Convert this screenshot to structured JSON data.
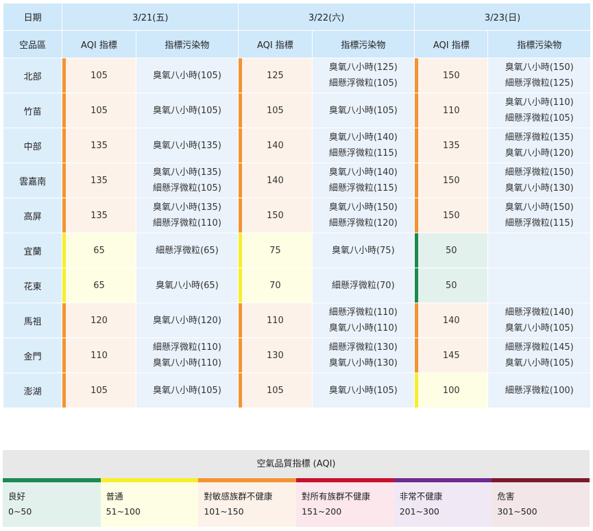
{
  "header": {
    "date_label": "日期",
    "dates": [
      "3/21(五)",
      "3/22(六)",
      "3/23(日)"
    ],
    "area_label": "空品區",
    "aqi_label": "AQI 指標",
    "pollutant_label": "指標污染物"
  },
  "rows": [
    {
      "area": "北部",
      "d": [
        {
          "aqi": "105",
          "p": [
            "臭氧八小時(105)"
          ],
          "c": "orange"
        },
        {
          "aqi": "125",
          "p": [
            "臭氧八小時(125)",
            "細懸浮微粒(105)"
          ],
          "c": "orange"
        },
        {
          "aqi": "150",
          "p": [
            "臭氧八小時(150)",
            "細懸浮微粒(125)"
          ],
          "c": "orange"
        }
      ]
    },
    {
      "area": "竹苗",
      "d": [
        {
          "aqi": "105",
          "p": [
            "臭氧八小時(105)"
          ],
          "c": "orange"
        },
        {
          "aqi": "105",
          "p": [
            "臭氧八小時(105)"
          ],
          "c": "orange"
        },
        {
          "aqi": "110",
          "p": [
            "臭氧八小時(110)",
            "細懸浮微粒(105)"
          ],
          "c": "orange"
        }
      ]
    },
    {
      "area": "中部",
      "d": [
        {
          "aqi": "135",
          "p": [
            "臭氧八小時(135)"
          ],
          "c": "orange"
        },
        {
          "aqi": "140",
          "p": [
            "臭氧八小時(140)",
            "細懸浮微粒(115)"
          ],
          "c": "orange"
        },
        {
          "aqi": "135",
          "p": [
            "細懸浮微粒(135)",
            "臭氧八小時(120)"
          ],
          "c": "orange"
        }
      ]
    },
    {
      "area": "雲嘉南",
      "d": [
        {
          "aqi": "135",
          "p": [
            "臭氧八小時(135)",
            "細懸浮微粒(105)"
          ],
          "c": "orange"
        },
        {
          "aqi": "140",
          "p": [
            "臭氧八小時(140)",
            "細懸浮微粒(115)"
          ],
          "c": "orange"
        },
        {
          "aqi": "150",
          "p": [
            "細懸浮微粒(150)",
            "臭氧八小時(130)"
          ],
          "c": "orange"
        }
      ]
    },
    {
      "area": "高屏",
      "d": [
        {
          "aqi": "135",
          "p": [
            "臭氧八小時(135)",
            "細懸浮微粒(110)"
          ],
          "c": "orange"
        },
        {
          "aqi": "150",
          "p": [
            "臭氧八小時(150)",
            "細懸浮微粒(120)"
          ],
          "c": "orange"
        },
        {
          "aqi": "150",
          "p": [
            "臭氧八小時(150)",
            "細懸浮微粒(115)"
          ],
          "c": "orange"
        }
      ]
    },
    {
      "area": "宜蘭",
      "d": [
        {
          "aqi": "65",
          "p": [
            "細懸浮微粒(65)"
          ],
          "c": "yellow"
        },
        {
          "aqi": "75",
          "p": [
            "臭氧八小時(75)"
          ],
          "c": "yellow"
        },
        {
          "aqi": "50",
          "p": [],
          "c": "green"
        }
      ]
    },
    {
      "area": "花東",
      "d": [
        {
          "aqi": "65",
          "p": [
            "臭氧八小時(65)"
          ],
          "c": "yellow"
        },
        {
          "aqi": "70",
          "p": [
            "細懸浮微粒(70)"
          ],
          "c": "yellow"
        },
        {
          "aqi": "50",
          "p": [],
          "c": "green"
        }
      ]
    },
    {
      "area": "馬祖",
      "d": [
        {
          "aqi": "120",
          "p": [
            "臭氧八小時(120)"
          ],
          "c": "orange"
        },
        {
          "aqi": "110",
          "p": [
            "細懸浮微粒(110)",
            "臭氧八小時(110)"
          ],
          "c": "orange"
        },
        {
          "aqi": "140",
          "p": [
            "細懸浮微粒(140)",
            "臭氧八小時(105)"
          ],
          "c": "orange"
        }
      ]
    },
    {
      "area": "金門",
      "d": [
        {
          "aqi": "110",
          "p": [
            "細懸浮微粒(110)",
            "臭氧八小時(110)"
          ],
          "c": "orange"
        },
        {
          "aqi": "130",
          "p": [
            "細懸浮微粒(130)",
            "臭氧八小時(130)"
          ],
          "c": "orange"
        },
        {
          "aqi": "145",
          "p": [
            "細懸浮微粒(145)",
            "臭氧八小時(105)"
          ],
          "c": "orange"
        }
      ]
    },
    {
      "area": "澎湖",
      "d": [
        {
          "aqi": "105",
          "p": [
            "臭氧八小時(105)"
          ],
          "c": "orange"
        },
        {
          "aqi": "105",
          "p": [
            "臭氧八小時(105)"
          ],
          "c": "orange"
        },
        {
          "aqi": "100",
          "p": [
            "細懸浮微粒(100)"
          ],
          "c": "yellow"
        }
      ]
    }
  ],
  "legend": {
    "title": "空氣品質指標 (AQI)",
    "items": [
      {
        "name": "良好",
        "range": "0~50",
        "color": "#1a8a52",
        "bg": "#e3f1ec"
      },
      {
        "name": "普通",
        "range": "51~100",
        "color": "#f6ee2d",
        "bg": "#fefee4"
      },
      {
        "name": "對敏感族群不健康",
        "range": "101~150",
        "color": "#f39333",
        "bg": "#fdf2e9"
      },
      {
        "name": "對所有族群不健康",
        "range": "151~200",
        "color": "#c8102e",
        "bg": "#fbe7ec"
      },
      {
        "name": "非常不健康",
        "range": "201~300",
        "color": "#6f2b8f",
        "bg": "#f0e9f5"
      },
      {
        "name": "危害",
        "range": "301~500",
        "color": "#7b1a2a",
        "bg": "#f3e6e8"
      }
    ]
  }
}
